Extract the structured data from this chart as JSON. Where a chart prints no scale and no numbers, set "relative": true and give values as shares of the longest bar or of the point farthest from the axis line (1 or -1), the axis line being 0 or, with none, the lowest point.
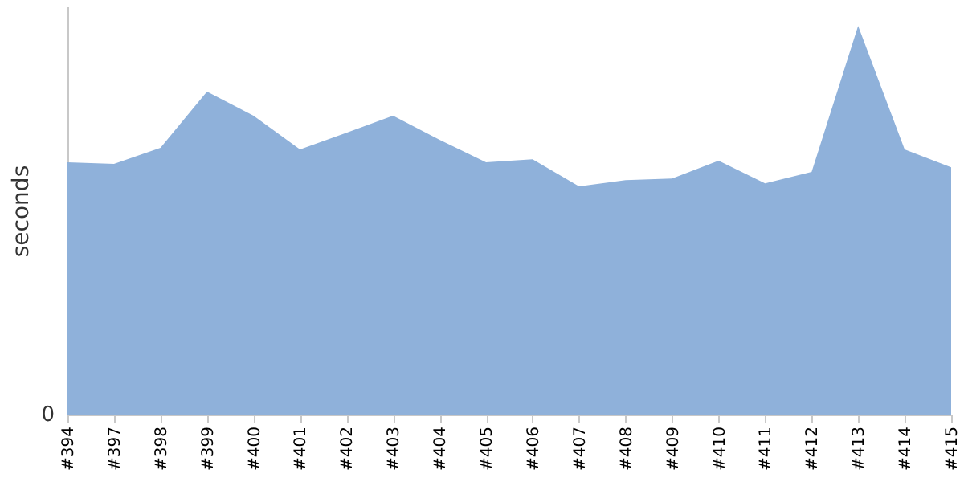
{
  "chart_data": {
    "type": "area",
    "ylabel": "seconds",
    "relative": true,
    "annotations": [
      "0"
    ],
    "color": "#8fb1da",
    "grid": false,
    "categories": [
      "#394",
      "#397",
      "#398",
      "#399",
      "#400",
      "#401",
      "#402",
      "#403",
      "#404",
      "#405",
      "#406",
      "#407",
      "#408",
      "#409",
      "#410",
      "#411",
      "#412",
      "#413",
      "#414",
      "#415"
    ],
    "values": [
      0.649,
      0.645,
      0.686,
      0.831,
      0.769,
      0.682,
      0.725,
      0.769,
      0.707,
      0.649,
      0.657,
      0.587,
      0.603,
      0.607,
      0.653,
      0.595,
      0.624,
      1,
      0.682,
      0.636
    ]
  }
}
